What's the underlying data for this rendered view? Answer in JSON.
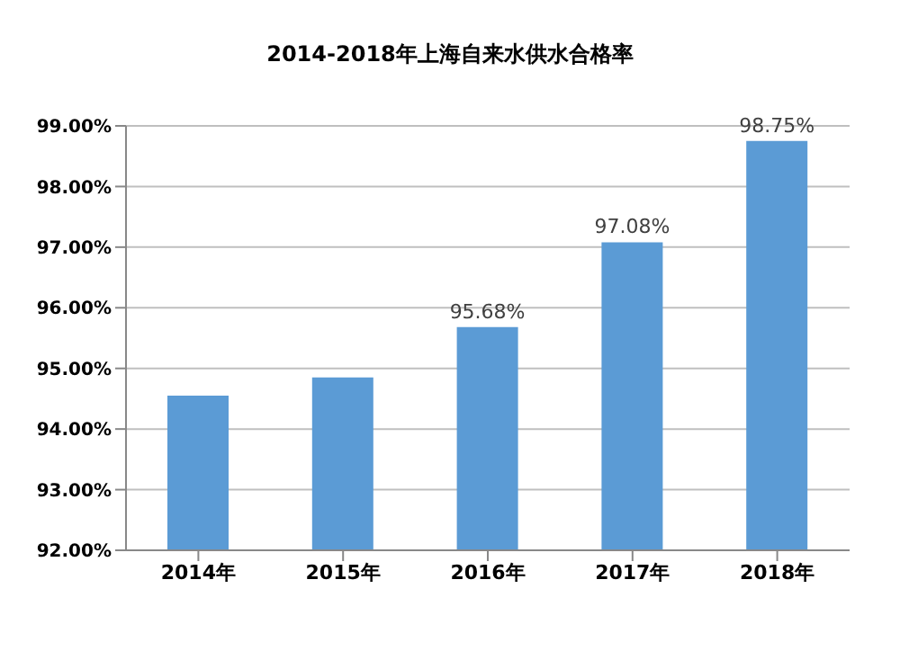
{
  "chart_data": {
    "type": "bar",
    "title": "2014-2018年上海自来水供水合格率",
    "categories": [
      "2014年",
      "2015年",
      "2016年",
      "2017年",
      "2018年"
    ],
    "values": [
      94.55,
      94.85,
      95.68,
      97.08,
      98.75
    ],
    "value_labels": [
      null,
      null,
      "95.68%",
      "97.08%",
      "98.75%"
    ],
    "color": "#5b9bd5",
    "ylim": [
      92,
      99
    ],
    "yticks": [
      {
        "value": 92,
        "label": "92.00%"
      },
      {
        "value": 93,
        "label": "93.00%"
      },
      {
        "value": 94,
        "label": "94.00%"
      },
      {
        "value": 95,
        "label": "95.00%"
      },
      {
        "value": 96,
        "label": "96.00%"
      },
      {
        "value": 97,
        "label": "97.00%"
      },
      {
        "value": 98,
        "label": "98.00%"
      },
      {
        "value": 99,
        "label": "99.00%"
      }
    ],
    "grid": "y",
    "legend": false
  }
}
